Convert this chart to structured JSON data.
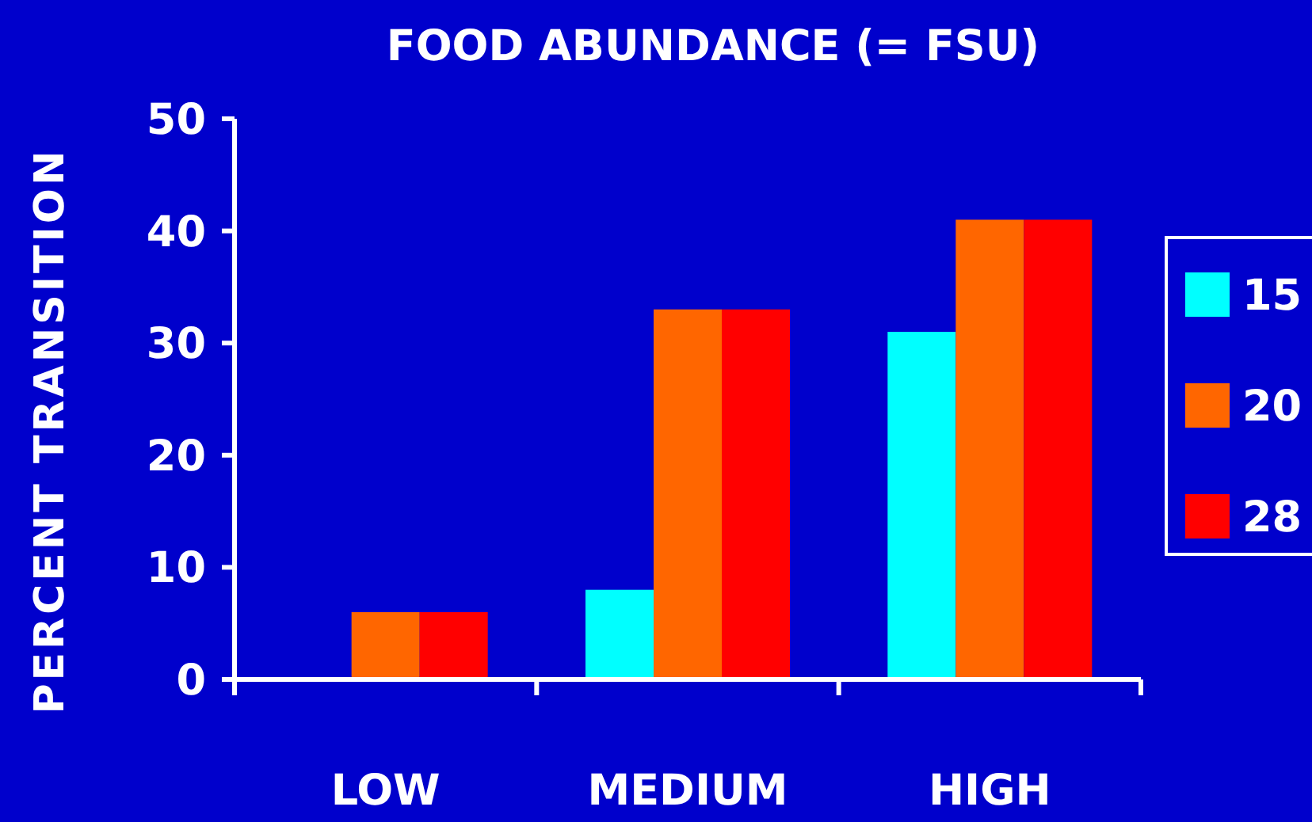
{
  "chart_data": {
    "type": "bar",
    "title": "FOOD ABUNDANCE (= FSU)",
    "ylabel": "PERCENT TRANSITION",
    "categories": [
      "LOW",
      "MEDIUM",
      "HIGH"
    ],
    "series": [
      {
        "name": "15",
        "color": "#00ffff",
        "values": [
          0,
          8,
          31
        ]
      },
      {
        "name": "20",
        "color": "#ff6600",
        "values": [
          6,
          33,
          41
        ]
      },
      {
        "name": "28",
        "color": "#ff0000",
        "values": [
          6,
          33,
          41
        ]
      }
    ],
    "ylim": [
      0,
      50
    ],
    "yticks": [
      0,
      10,
      20,
      30,
      40,
      50
    ],
    "grid": false,
    "legend": "right"
  }
}
